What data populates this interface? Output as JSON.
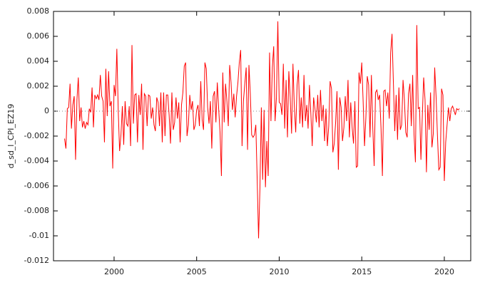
{
  "chart_data": {
    "type": "line",
    "y_label": "d_sd_l_CPI_EZ19",
    "x": [
      1997,
      1997.083,
      1997.167,
      1997.25,
      1997.333,
      1997.417,
      1997.5,
      1997.583,
      1997.667,
      1997.75,
      1997.833,
      1997.917,
      1998,
      1998.083,
      1998.167,
      1998.25,
      1998.333,
      1998.417,
      1998.5,
      1998.583,
      1998.667,
      1998.75,
      1998.833,
      1998.917,
      1999,
      1999.083,
      1999.167,
      1999.25,
      1999.333,
      1999.417,
      1999.5,
      1999.583,
      1999.667,
      1999.75,
      1999.833,
      1999.917,
      2000,
      2000.083,
      2000.167,
      2000.25,
      2000.333,
      2000.417,
      2000.5,
      2000.583,
      2000.667,
      2000.75,
      2000.833,
      2000.917,
      2001,
      2001.083,
      2001.167,
      2001.25,
      2001.333,
      2001.417,
      2001.5,
      2001.583,
      2001.667,
      2001.75,
      2001.833,
      2001.917,
      2002,
      2002.083,
      2002.167,
      2002.25,
      2002.333,
      2002.417,
      2002.5,
      2002.583,
      2002.667,
      2002.75,
      2002.833,
      2002.917,
      2003,
      2003.083,
      2003.167,
      2003.25,
      2003.333,
      2003.417,
      2003.5,
      2003.583,
      2003.667,
      2003.75,
      2003.833,
      2003.917,
      2004,
      2004.083,
      2004.167,
      2004.25,
      2004.333,
      2004.417,
      2004.5,
      2004.583,
      2004.667,
      2004.75,
      2004.833,
      2004.917,
      2005,
      2005.083,
      2005.167,
      2005.25,
      2005.333,
      2005.417,
      2005.5,
      2005.583,
      2005.667,
      2005.75,
      2005.833,
      2005.917,
      2006,
      2006.083,
      2006.167,
      2006.25,
      2006.333,
      2006.417,
      2006.5,
      2006.583,
      2006.667,
      2006.75,
      2006.833,
      2006.917,
      2007,
      2007.083,
      2007.167,
      2007.25,
      2007.333,
      2007.417,
      2007.5,
      2007.583,
      2007.667,
      2007.75,
      2007.833,
      2007.917,
      2008,
      2008.083,
      2008.167,
      2008.25,
      2008.333,
      2008.417,
      2008.5,
      2008.583,
      2008.667,
      2008.75,
      2008.833,
      2008.917,
      2009,
      2009.083,
      2009.167,
      2009.25,
      2009.333,
      2009.417,
      2009.5,
      2009.583,
      2009.667,
      2009.75,
      2009.833,
      2009.917,
      2010,
      2010.083,
      2010.167,
      2010.25,
      2010.333,
      2010.417,
      2010.5,
      2010.583,
      2010.667,
      2010.75,
      2010.833,
      2010.917,
      2011,
      2011.083,
      2011.167,
      2011.25,
      2011.333,
      2011.417,
      2011.5,
      2011.583,
      2011.667,
      2011.75,
      2011.833,
      2011.917,
      2012,
      2012.083,
      2012.167,
      2012.25,
      2012.333,
      2012.417,
      2012.5,
      2012.583,
      2012.667,
      2012.75,
      2012.833,
      2012.917,
      2013,
      2013.083,
      2013.167,
      2013.25,
      2013.333,
      2013.417,
      2013.5,
      2013.583,
      2013.667,
      2013.75,
      2013.833,
      2013.917,
      2014,
      2014.083,
      2014.167,
      2014.25,
      2014.333,
      2014.417,
      2014.5,
      2014.583,
      2014.667,
      2014.75,
      2014.833,
      2014.917,
      2015,
      2015.083,
      2015.167,
      2015.25,
      2015.333,
      2015.417,
      2015.5,
      2015.583,
      2015.667,
      2015.75,
      2015.833,
      2015.917,
      2016,
      2016.083,
      2016.167,
      2016.25,
      2016.333,
      2016.417,
      2016.5,
      2016.583,
      2016.667,
      2016.75,
      2016.833,
      2016.917,
      2017,
      2017.083,
      2017.167,
      2017.25,
      2017.333,
      2017.417,
      2017.5,
      2017.583,
      2017.667,
      2017.75,
      2017.833,
      2017.917,
      2018,
      2018.083,
      2018.167,
      2018.25,
      2018.333,
      2018.417,
      2018.5,
      2018.583,
      2018.667,
      2018.75,
      2018.833,
      2018.917,
      2019,
      2019.083,
      2019.167,
      2019.25,
      2019.333,
      2019.417,
      2019.5,
      2019.583,
      2019.667,
      2019.75,
      2019.833,
      2019.917,
      2020,
      2020.083,
      2020.167,
      2020.25,
      2020.333,
      2020.417,
      2020.5,
      2020.583,
      2020.667,
      2020.75,
      2020.833,
      2020.917
    ],
    "series": [
      {
        "color": "#ff0000",
        "values": [
          -0.0022,
          -0.003,
          0.0002,
          0.0003,
          0.0022,
          -0.0014,
          0.0005,
          0.0012,
          -0.0039,
          0.0009,
          0.0027,
          -0.0008,
          0.0003,
          -0.0013,
          -0.0008,
          -0.0014,
          -0.0009,
          -0.0011,
          0.0002,
          -0.0001,
          0.0019,
          -0.0013,
          0.0013,
          0.001,
          0.0013,
          0.0009,
          0.0029,
          0.0012,
          0.0008,
          -0.0025,
          0.0034,
          -0.0004,
          0.0032,
          0.0004,
          0.0008,
          -0.0046,
          0.0021,
          0.0012,
          0.005,
          0.0001,
          -0.0032,
          -0.0019,
          0.0004,
          -0.0027,
          0.0008,
          -0.001,
          -0.0012,
          0.0004,
          -0.0028,
          0.0053,
          -0.001,
          0.0013,
          0.0014,
          -0.0025,
          0.0013,
          -0.0003,
          0.0022,
          -0.0031,
          0.0014,
          0.0012,
          -0.0012,
          0.0013,
          0.0012,
          -0.0006,
          0.0003,
          -0.0011,
          -0.0016,
          0.0011,
          0.0007,
          -0.0012,
          0.0015,
          -0.0025,
          0.0015,
          -0.002,
          0.0013,
          0.0013,
          -0.0003,
          -0.0026,
          0.0015,
          -0.0015,
          -0.0009,
          0.0011,
          -0.0006,
          0.0007,
          -0.0025,
          0.0005,
          0.0015,
          0.0036,
          0.0039,
          -0.002,
          -0.0011,
          0.0013,
          0.0001,
          0.0008,
          -0.0015,
          -0.0011,
          0.0001,
          0.0005,
          -0.0012,
          0.0024,
          -0.0007,
          -0.0015,
          0.0039,
          0.0034,
          0.0003,
          -0.001,
          0.0008,
          -0.003,
          0.0012,
          0.0016,
          -0.0009,
          0.0023,
          0.0002,
          -0.0017,
          -0.0052,
          0.0031,
          -0.0009,
          0.0022,
          0.0008,
          -0.0012,
          0.0037,
          0.0023,
          0.0001,
          0.0014,
          -0.0005,
          0.0012,
          0.0023,
          0.0039,
          0.0049,
          -0.0028,
          0.0008,
          0.0022,
          0.0035,
          -0.0031,
          0.0037,
          0.0014,
          -0.0019,
          -0.0021,
          -0.0019,
          -0.0011,
          -0.0055,
          -0.0102,
          -0.0062,
          0.0003,
          -0.0055,
          0.0001,
          -0.0061,
          -0.0024,
          -0.0052,
          0.0047,
          -0.0008,
          0.0035,
          0.0052,
          -0.0008,
          0.0011,
          0.0072,
          0.0007,
          0.0006,
          -0.0003,
          0.0038,
          -0.0014,
          0.0025,
          -0.0021,
          0.0032,
          0.0011,
          -0.0018,
          0.0038,
          0.0003,
          -0.0017,
          0.0021,
          0.0033,
          -0.001,
          0.0011,
          -0.0013,
          0.0029,
          -0.0008,
          0.0005,
          -0.0014,
          0.0021,
          -0.0002,
          -0.0028,
          0.0011,
          0.0002,
          -0.0009,
          0.0013,
          -0.0013,
          0.0017,
          -0.0008,
          0.0005,
          -0.0024,
          0.0002,
          -0.0028,
          -0.0012,
          0.0024,
          0.0018,
          -0.0033,
          -0.0026,
          -0.0009,
          0.0016,
          -0.0047,
          0.0011,
          0.0003,
          -0.0024,
          -0.0013,
          0.0012,
          -0.0008,
          0.0025,
          -0.0021,
          0.0007,
          -0.0013,
          -0.0026,
          0.0008,
          -0.0045,
          -0.0044,
          0.0031,
          0.0022,
          0.0039,
          0.0008,
          -0.0028,
          -0.0005,
          0.0028,
          0.0021,
          -0.0021,
          0.0029,
          -0.0013,
          -0.0044,
          0.0015,
          0.0017,
          0.0009,
          0.0013,
          -0.0014,
          -0.0052,
          0.0016,
          0.0017,
          0.0004,
          0.0015,
          -0.0006,
          0.0047,
          0.0062,
          0.0022,
          -0.0016,
          0.0013,
          -0.0023,
          0.0019,
          -0.0015,
          -0.0011,
          0.0025,
          0.0009,
          -0.0017,
          -0.0021,
          0.0014,
          0.0022,
          -0.0012,
          0.0029,
          -0.0019,
          -0.0041,
          0.0069,
          0.0002,
          0.0003,
          -0.0039,
          -0.0004,
          0.0027,
          0.0009,
          -0.0049,
          0.0005,
          -0.0015,
          0.0015,
          -0.0029,
          -0.0018,
          0.0035,
          0.0012,
          -0.0019,
          -0.0047,
          -0.0045,
          0.0018,
          0.0013,
          -0.0056,
          -0.0025,
          -0.0011,
          0.0003,
          -0.0008,
          0.0002,
          0.0004,
          0.0001,
          -0.0003,
          0.0002,
          0.0001,
          0.0002
        ]
      }
    ],
    "xlim": [
      1996.33,
      2021.6
    ],
    "xticks": [
      2000,
      2005,
      2010,
      2015,
      2020
    ],
    "ylim": [
      -0.012,
      0.008
    ],
    "yticks": [
      -0.012,
      -0.01,
      -0.008,
      -0.006,
      -0.004,
      -0.002,
      0,
      0.002,
      0.004,
      0.006,
      0.008
    ],
    "zero_line": true
  }
}
